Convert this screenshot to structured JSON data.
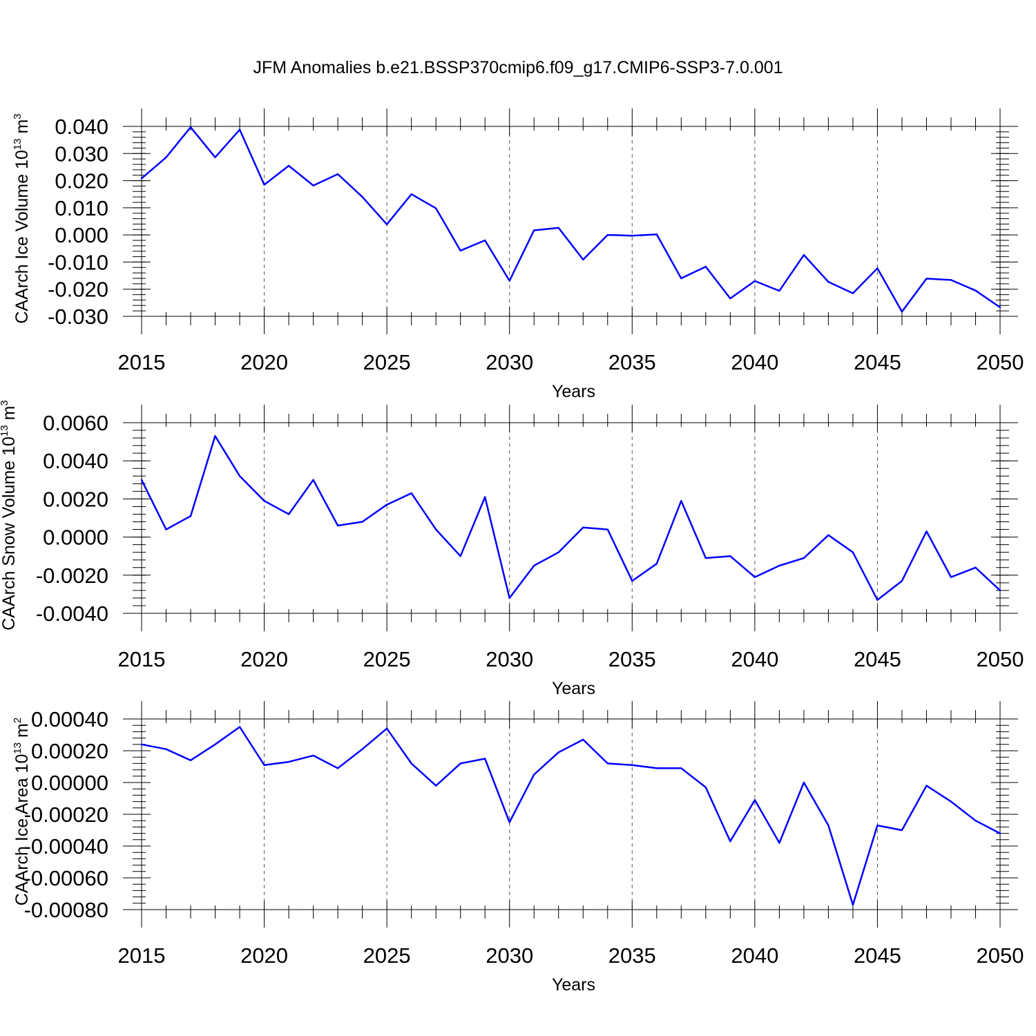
{
  "title": "JFM Anomalies b.e21.BSSP370cmip6.f09_g17.CMIP6-SSP3-7.0.001",
  "colors": {
    "line": "#0000ff",
    "axis": "#000000",
    "grid": "#555555"
  },
  "chart_data": [
    {
      "type": "line",
      "title": "JFM Anomalies b.e21.BSSP370cmip6.f09_g17.CMIP6-SSP3-7.0.001",
      "xlabel": "Years",
      "ylabel": "CAArch Ice Volume 10",
      "ylabel_exp": "13",
      "ylabel_unit": " m",
      "ylabel_unit_exp": "3",
      "xlim": [
        2015,
        2050
      ],
      "ylim": [
        -0.03,
        0.04
      ],
      "x_ticks": [
        2015,
        2020,
        2025,
        2030,
        2035,
        2040,
        2045,
        2050
      ],
      "y_ticks": [
        "0.040",
        "0.030",
        "0.020",
        "0.010",
        "0.000",
        "-0.010",
        "-0.020",
        "-0.030"
      ],
      "y_tick_values": [
        0.04,
        0.03,
        0.02,
        0.01,
        0.0,
        -0.01,
        -0.02,
        -0.03
      ],
      "grid": "vertical dashed at major x ticks; horizontal at y=0.040",
      "x": [
        2015,
        2016,
        2017,
        2018,
        2019,
        2020,
        2021,
        2022,
        2023,
        2024,
        2025,
        2026,
        2027,
        2028,
        2029,
        2030,
        2031,
        2032,
        2033,
        2034,
        2035,
        2036,
        2037,
        2038,
        2039,
        2040,
        2041,
        2042,
        2043,
        2044,
        2045,
        2046,
        2047,
        2048,
        2049,
        2050
      ],
      "series": [
        {
          "values": [
            0.0208,
            0.0286,
            0.0397,
            0.0286,
            0.0388,
            0.0185,
            0.0255,
            0.0182,
            0.0224,
            0.014,
            0.0039,
            0.015,
            0.0098,
            -0.0058,
            -0.002,
            -0.0169,
            0.0017,
            0.0026,
            -0.0091,
            0.0,
            -0.0003,
            0.0002,
            -0.016,
            -0.0117,
            -0.0234,
            -0.017,
            -0.0206,
            -0.0074,
            -0.0173,
            -0.0215,
            -0.0123,
            -0.0283,
            -0.0161,
            -0.0166,
            -0.0205,
            -0.0267
          ]
        }
      ]
    },
    {
      "type": "line",
      "xlabel": "Years",
      "ylabel": "CAArch Snow Volume 10",
      "ylabel_exp": "13",
      "ylabel_unit": " m",
      "ylabel_unit_exp": "3",
      "xlim": [
        2015,
        2050
      ],
      "ylim": [
        -0.004,
        0.006
      ],
      "x_ticks": [
        2015,
        2020,
        2025,
        2030,
        2035,
        2040,
        2045,
        2050
      ],
      "y_ticks": [
        "0.0060",
        "0.0040",
        "0.0020",
        "0.0000",
        "-0.0020",
        "-0.0040"
      ],
      "y_tick_values": [
        0.006,
        0.004,
        0.002,
        0.0,
        -0.002,
        -0.004
      ],
      "grid": "vertical dashed at major x ticks; horizontal at y=0.0060",
      "x": [
        2015,
        2016,
        2017,
        2018,
        2019,
        2020,
        2021,
        2022,
        2023,
        2024,
        2025,
        2026,
        2027,
        2028,
        2029,
        2030,
        2031,
        2032,
        2033,
        2034,
        2035,
        2036,
        2037,
        2038,
        2039,
        2040,
        2041,
        2042,
        2043,
        2044,
        2045,
        2046,
        2047,
        2048,
        2049,
        2050
      ],
      "series": [
        {
          "values": [
            0.003,
            0.0004,
            0.0011,
            0.0053,
            0.0032,
            0.0019,
            0.0012,
            0.003,
            0.0006,
            0.0008,
            0.0017,
            0.0023,
            0.0004,
            -0.001,
            0.0021,
            -0.0032,
            -0.0015,
            -0.0008,
            0.0005,
            0.0004,
            -0.0023,
            -0.0014,
            0.0019,
            -0.0011,
            -0.001,
            -0.0021,
            -0.0015,
            -0.0011,
            0.0001,
            -0.0008,
            -0.0033,
            -0.0023,
            0.0003,
            -0.0021,
            -0.0016,
            -0.0028
          ]
        }
      ]
    },
    {
      "type": "line",
      "xlabel": "Years",
      "ylabel": "CAArch Ice Area 10",
      "ylabel_exp": "13",
      "ylabel_unit": " m",
      "ylabel_unit_exp": "2",
      "xlim": [
        2015,
        2050
      ],
      "ylim": [
        -0.0008,
        0.0004
      ],
      "x_ticks": [
        2015,
        2020,
        2025,
        2030,
        2035,
        2040,
        2045,
        2050
      ],
      "y_ticks": [
        "0.00040",
        "0.00020",
        "0.00000",
        "-0.00020",
        "-0.00040",
        "-0.00060",
        "-0.00080"
      ],
      "y_tick_values": [
        0.0004,
        0.0002,
        0.0,
        -0.0002,
        -0.0004,
        -0.0006,
        -0.0008
      ],
      "grid": "vertical dashed at major x ticks; horizontal at y=0.00040",
      "x": [
        2015,
        2016,
        2017,
        2018,
        2019,
        2020,
        2021,
        2022,
        2023,
        2024,
        2025,
        2026,
        2027,
        2028,
        2029,
        2030,
        2031,
        2032,
        2033,
        2034,
        2035,
        2036,
        2037,
        2038,
        2039,
        2040,
        2041,
        2042,
        2043,
        2044,
        2045,
        2046,
        2047,
        2048,
        2049,
        2050
      ],
      "series": [
        {
          "values": [
            0.00024,
            0.00021,
            0.00014,
            0.00024,
            0.00035,
            0.00011,
            0.00013,
            0.00017,
            9e-05,
            0.00021,
            0.00034,
            0.00012,
            -2e-05,
            0.00012,
            0.00015,
            -0.00025,
            5e-05,
            0.00019,
            0.00027,
            0.00012,
            0.00011,
            9e-05,
            9e-05,
            -3e-05,
            -0.00037,
            -0.00011,
            -0.00038,
            0.0,
            -0.00027,
            -0.00077,
            -0.00027,
            -0.0003,
            -2e-05,
            -0.00012,
            -0.00024,
            -0.00032
          ]
        }
      ]
    }
  ]
}
